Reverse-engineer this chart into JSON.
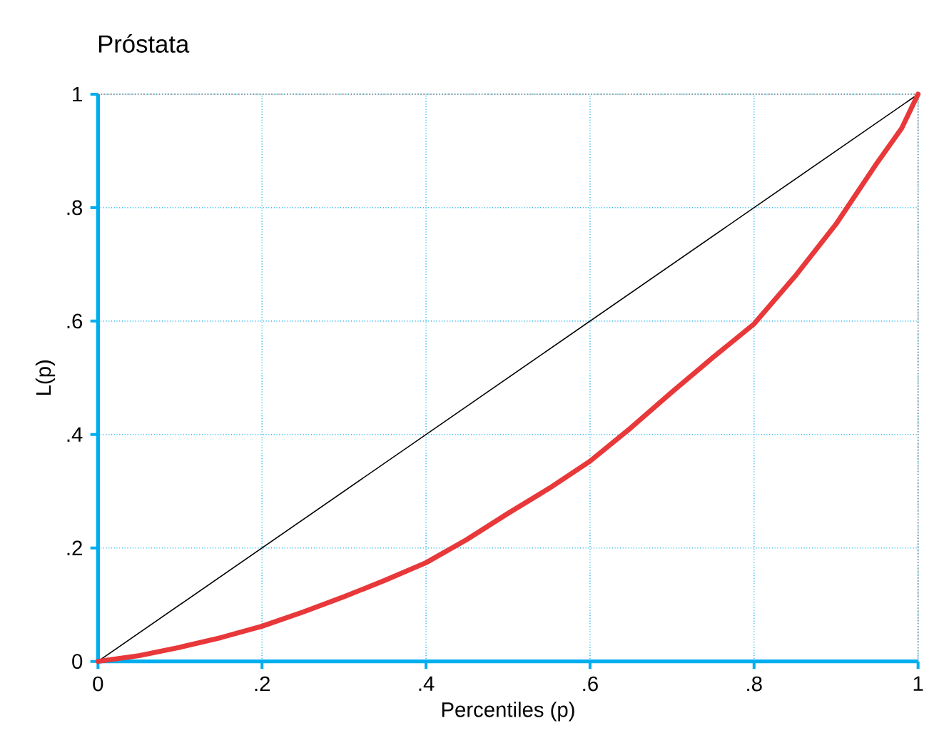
{
  "chart_data": {
    "type": "line",
    "title": "Próstata",
    "xlabel": "Percentiles (p)",
    "ylabel": "L(p)",
    "xlim": [
      0,
      1
    ],
    "ylim": [
      0,
      1
    ],
    "xticks": [
      0,
      {
        "value": 0.2,
        "label": ".2"
      },
      {
        "value": 0.4,
        "label": ".4"
      },
      {
        "value": 0.6,
        "label": ".6"
      },
      {
        "value": 0.8,
        "label": ".8"
      },
      1
    ],
    "yticks": [
      0,
      {
        "value": 0.2,
        "label": ".2"
      },
      {
        "value": 0.4,
        "label": ".4"
      },
      {
        "value": 0.6,
        "label": ".6"
      },
      {
        "value": 0.8,
        "label": ".8"
      },
      1
    ],
    "grid": true,
    "marker": "none",
    "line_style": "solid",
    "series": [
      {
        "color": "#000000",
        "x": [
          0,
          1
        ],
        "values": [
          0,
          1
        ]
      },
      {
        "color": "#e8383a",
        "x": [
          0,
          0.05,
          0.1,
          0.15,
          0.2,
          0.25,
          0.3,
          0.35,
          0.4,
          0.45,
          0.5,
          0.55,
          0.6,
          0.65,
          0.7,
          0.75,
          0.8,
          0.85,
          0.9,
          0.95,
          0.98,
          1
        ],
        "values": [
          0,
          0.01,
          0.025,
          0.042,
          0.062,
          0.087,
          0.114,
          0.143,
          0.174,
          0.215,
          0.261,
          0.305,
          0.353,
          0.412,
          0.475,
          0.536,
          0.595,
          0.679,
          0.771,
          0.879,
          0.94,
          1
        ]
      }
    ]
  }
}
